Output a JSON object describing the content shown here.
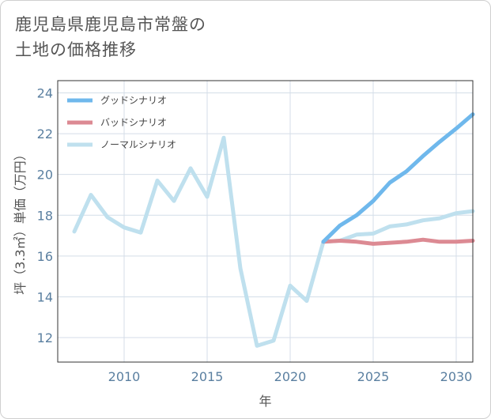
{
  "title_lines": [
    "鹿児島県鹿児島市常盤の",
    "土地の価格推移"
  ],
  "chart_data": {
    "type": "line",
    "xlabel": "年",
    "ylabel": "坪（3.3㎡）単価（万円）",
    "xlim": [
      2006,
      2031
    ],
    "ylim": [
      10.8,
      24.6
    ],
    "xticks": [
      2010,
      2015,
      2020,
      2025,
      2030
    ],
    "yticks": [
      12,
      14,
      16,
      18,
      20,
      22,
      24
    ],
    "grid": true,
    "legend_position": "top-left",
    "series": [
      {
        "name": "グッドシナリオ",
        "color": "#6fb8ec",
        "x": [
          2022,
          2023,
          2024,
          2025,
          2026,
          2027,
          2028,
          2029,
          2030,
          2031
        ],
        "values": [
          16.7,
          17.5,
          18.0,
          18.7,
          19.6,
          20.15,
          20.9,
          21.6,
          22.25,
          22.95
        ]
      },
      {
        "name": "バッドシナリオ",
        "color": "#dc8a93",
        "x": [
          2022,
          2023,
          2024,
          2025,
          2026,
          2027,
          2028,
          2029,
          2030,
          2031
        ],
        "values": [
          16.7,
          16.75,
          16.7,
          16.6,
          16.65,
          16.7,
          16.8,
          16.7,
          16.7,
          16.75
        ]
      },
      {
        "name": "ノーマルシナリオ",
        "color": "#bfe0ee",
        "x": [
          2007,
          2008,
          2009,
          2010,
          2011,
          2012,
          2013,
          2014,
          2015,
          2016,
          2017,
          2018,
          2019,
          2020,
          2021,
          2022,
          2023,
          2024,
          2025,
          2026,
          2027,
          2028,
          2029,
          2030,
          2031
        ],
        "values": [
          17.2,
          19.0,
          17.9,
          17.4,
          17.15,
          19.7,
          18.7,
          20.3,
          18.9,
          21.8,
          15.4,
          11.6,
          11.85,
          14.55,
          13.8,
          16.7,
          16.75,
          17.05,
          17.1,
          17.45,
          17.55,
          17.75,
          17.85,
          18.1,
          18.2
        ]
      }
    ]
  }
}
